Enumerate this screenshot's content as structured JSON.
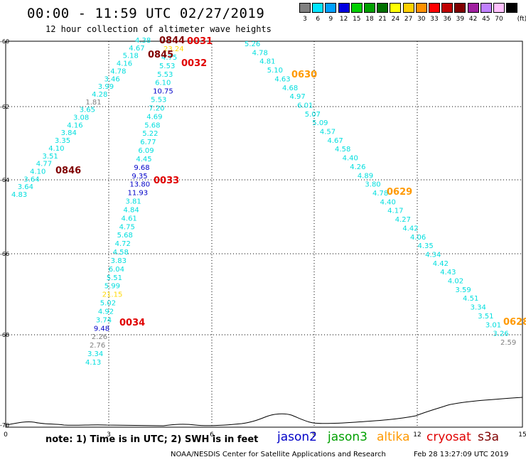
{
  "title": "00:00 - 11:59 UTC 02/27/2019",
  "subtitle": "12 hour collection of altimeter wave heights",
  "legend": {
    "unit": "(ft)",
    "bins": [
      {
        "label": "3",
        "color": "#808080"
      },
      {
        "label": "6",
        "color": "#00e5ff"
      },
      {
        "label": "9",
        "color": "#00a0ff"
      },
      {
        "label": "12",
        "color": "#0000e0"
      },
      {
        "label": "15",
        "color": "#00d000"
      },
      {
        "label": "18",
        "color": "#00a000"
      },
      {
        "label": "21",
        "color": "#007000"
      },
      {
        "label": "24",
        "color": "#ffff00"
      },
      {
        "label": "27",
        "color": "#ffd000"
      },
      {
        "label": "30",
        "color": "#ff9000"
      },
      {
        "label": "33",
        "color": "#ff0000"
      },
      {
        "label": "36",
        "color": "#c00000"
      },
      {
        "label": "39",
        "color": "#800000"
      },
      {
        "label": "42",
        "color": "#a020a0"
      },
      {
        "label": "45",
        "color": "#c080ff"
      },
      {
        "label": "70",
        "color": "#ffc0ff"
      },
      {
        "label": "",
        "color": "#000000"
      }
    ]
  },
  "axes": {
    "x_ticks": [
      "0",
      "3",
      "6",
      "9",
      "12",
      "15"
    ],
    "y_ticks": [
      "-60",
      "-62",
      "-64",
      "-66",
      "-68",
      "-70"
    ]
  },
  "colors": {
    "h3": "#808080",
    "h6": "#00dede",
    "h12": "#0000c8",
    "h15": "#80d040",
    "h21": "#ffd800",
    "altika": "#ff9900",
    "cryosat": "#e00000",
    "s3a": "#800000"
  },
  "track1_values": [
    "4.83",
    "3.64",
    "3.64",
    "4.10",
    "4.77",
    "3.51",
    "4.10",
    "3.35",
    "3.84",
    "4.16",
    "3.08",
    "3.65",
    "1.81",
    "4.28",
    "3.99",
    "3.46",
    "4.78",
    "4.16",
    "5.18",
    "4.67",
    "4.38"
  ],
  "track2_values": [
    "4.13",
    "3.34",
    "2.76",
    "2.26",
    "9.48",
    "3.74",
    "4.92",
    "5.02",
    "21.15",
    "5.99",
    "5.51",
    "6.04",
    "3.83",
    "4.58",
    "4.72",
    "5.68",
    "4.75",
    "4.61",
    "4.84",
    "3.81",
    "11.93",
    "13.80",
    "9.35",
    "9.68",
    "4.45",
    "6.09",
    "6.77",
    "5.22",
    "5.68",
    "4.69",
    "7.20",
    "5.53",
    "10.75",
    "6.10",
    "5.53",
    "5.53",
    "4.75",
    "23.24"
  ],
  "track3_values": [
    "5.26",
    "4.78",
    "4.81",
    "5.10",
    "4.63",
    "4.68",
    "4.97",
    "6.01",
    "5.07",
    "5.09",
    "4.57",
    "4.67",
    "4.58",
    "4.40",
    "4.26",
    "4.89",
    "3.80",
    "4.78",
    "4.40",
    "4.17",
    "4.27",
    "4.42",
    "4.06",
    "4.35",
    "4.34",
    "4.42",
    "4.43",
    "4.02",
    "3.59",
    "4.51",
    "3.34",
    "3.51",
    "3.01",
    "3.26",
    "2.59"
  ],
  "times": [
    "0844",
    "0845",
    "0846",
    "0031",
    "0032",
    "0033",
    "0034",
    "0630",
    "0629",
    "0628"
  ],
  "note": "note: 1) Time is in UTC; 2) SWH is in feet",
  "satellites": [
    {
      "name": "jason2",
      "color": "#0000c8"
    },
    {
      "name": "jason3",
      "color": "#00a000"
    },
    {
      "name": "altika",
      "color": "#ff9900"
    },
    {
      "name": "cryosat",
      "color": "#e00000"
    },
    {
      "name": "s3a",
      "color": "#800000"
    }
  ],
  "credit": "NOAA/NESDIS Center for Satellite Applications and Research",
  "stamp": "Feb 28 13:27:09 UTC 2019"
}
